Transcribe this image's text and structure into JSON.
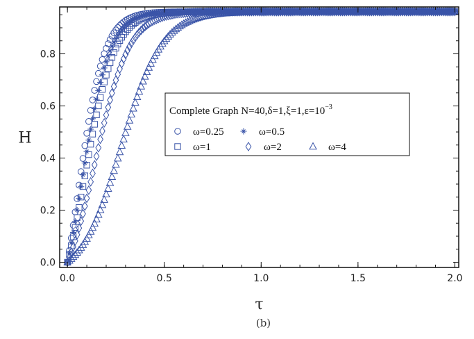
{
  "chart_data": {
    "type": "scatter",
    "title": "",
    "xlabel": "τ",
    "ylabel": "H",
    "caption": "(b)",
    "xlim": [
      -0.04,
      2.02
    ],
    "ylim": [
      -0.02,
      0.98
    ],
    "x_ticks": [
      0.0,
      0.5,
      1.0,
      1.5,
      2.0
    ],
    "x_tick_labels": [
      "0.0",
      "0.5",
      "1.0",
      "1.5",
      "2.0"
    ],
    "y_ticks": [
      0.0,
      0.2,
      0.4,
      0.6,
      0.8
    ],
    "y_tick_labels": [
      "0.0",
      "0.2",
      "0.4",
      "0.6",
      "0.8"
    ],
    "grid": false,
    "legend": {
      "placement": "center-right",
      "title_prefix": "Complete Graph N=40,δ=1,ξ=1,ε=10",
      "title_exponent": "−3"
    },
    "asymptote": 0.962,
    "series": [
      {
        "name": "ω=0.25",
        "marker": "circle",
        "tau_half": 0.055,
        "steepness": 15.0,
        "step": 0.01
      },
      {
        "name": "ω=0.5",
        "marker": "asterisk",
        "tau_half": 0.075,
        "steepness": 14.0,
        "step": 0.01
      },
      {
        "name": "ω=1",
        "marker": "square",
        "tau_half": 0.09,
        "steepness": 13.0,
        "step": 0.01
      },
      {
        "name": "ω=2",
        "marker": "diamond",
        "tau_half": 0.145,
        "steepness": 11.5,
        "step": 0.01
      },
      {
        "name": "ω=4",
        "marker": "triangle",
        "tau_half": 0.28,
        "steepness": 9.5,
        "step": 0.01
      }
    ],
    "marker_color": "#3a54a8"
  }
}
